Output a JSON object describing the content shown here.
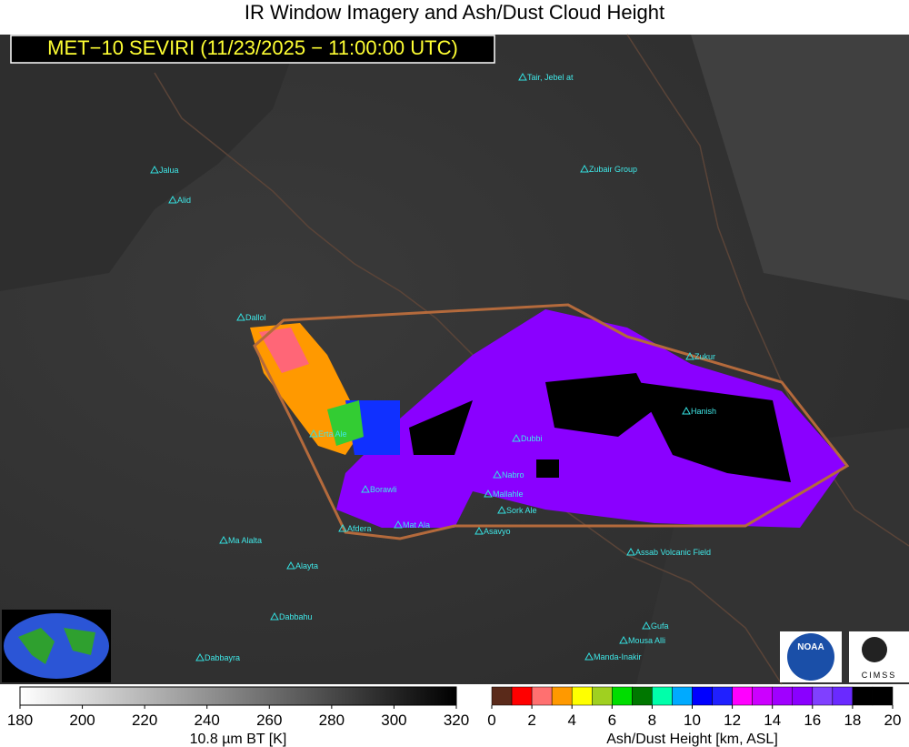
{
  "header": {
    "title": "IR Window Imagery and Ash/Dust Cloud Height",
    "banner": "MET−10 SEVIRI (11/23/2025 − 11:00:00 UTC)"
  },
  "volcanoes": [
    "Tair, Jebel at",
    "Jalua",
    "Alid",
    "Zubair Group",
    "Dallol",
    "Erta Ale",
    "Zukur",
    "Hanish",
    "Dubbi",
    "Nabro",
    "Mallahle",
    "Sork Ale",
    "Borawli",
    "Afdera",
    "Mat Ala",
    "Asavyo",
    "Ma Alalta",
    "Alayta",
    "Assab Volcanic Field",
    "Dabbahu",
    "Gufa",
    "Mousa Alli",
    "Manda-Inakir",
    "Dabbayra"
  ],
  "colorbars": [
    {
      "label": "10.8 µm BT [K]",
      "ticks": [
        180,
        200,
        220,
        240,
        260,
        280,
        300,
        320
      ]
    },
    {
      "label": "Ash/Dust Height [km, ASL]",
      "ticks": [
        0,
        2,
        4,
        6,
        8,
        10,
        12,
        14,
        16,
        18,
        20
      ]
    }
  ],
  "logos": {
    "noaa": "NOAA",
    "cimss": "CIMSS"
  }
}
